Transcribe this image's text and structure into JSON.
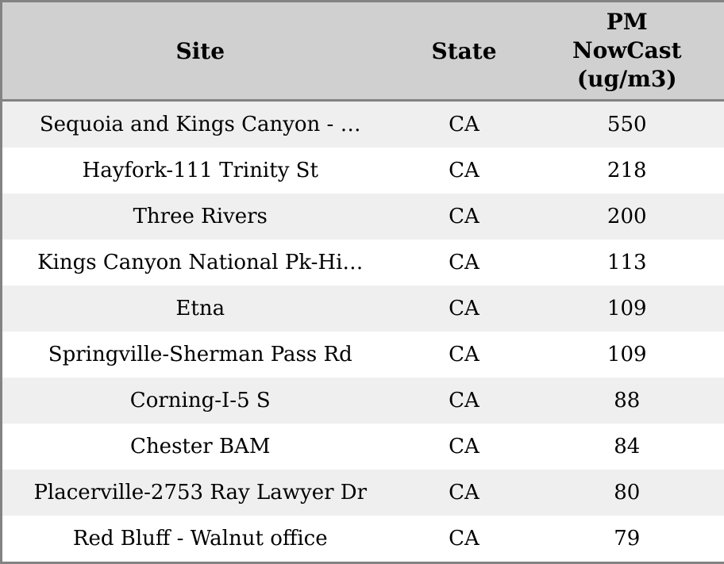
{
  "table": {
    "columns": [
      {
        "label": "Site"
      },
      {
        "label": "State"
      },
      {
        "label": "PM NowCast (ug/m3)"
      }
    ],
    "rows": [
      {
        "site": "Sequoia and Kings Canyon - …",
        "state": "CA",
        "value": "550"
      },
      {
        "site": "Hayfork-111 Trinity St",
        "state": "CA",
        "value": "218"
      },
      {
        "site": "Three Rivers",
        "state": "CA",
        "value": "200"
      },
      {
        "site": "Kings Canyon National Pk-Hi…",
        "state": "CA",
        "value": "113"
      },
      {
        "site": "Etna",
        "state": "CA",
        "value": "109"
      },
      {
        "site": "Springville-Sherman Pass Rd",
        "state": "CA",
        "value": "109"
      },
      {
        "site": "Corning-I-5 S",
        "state": "CA",
        "value": "88"
      },
      {
        "site": "Chester BAM",
        "state": "CA",
        "value": "84"
      },
      {
        "site": "Placerville-2753 Ray Lawyer Dr",
        "state": "CA",
        "value": "80"
      },
      {
        "site": "Red Bluff - Walnut office",
        "state": "CA",
        "value": "79"
      }
    ],
    "colors": {
      "header_bg": "#d0d0d0",
      "row_odd_bg": "#efefef",
      "row_even_bg": "#ffffff",
      "border": "#838383",
      "text": "#000000"
    }
  }
}
